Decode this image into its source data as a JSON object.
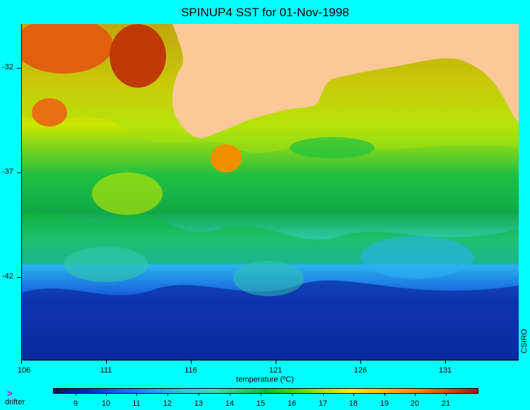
{
  "title": "SPINUP4 SST for 01-Nov-1998",
  "map": {
    "lat_labels": [
      "-32",
      "-37",
      "-42"
    ],
    "lon_labels": [
      "106",
      "111",
      "116",
      "121",
      "126",
      "131"
    ],
    "credit": "CSIRO",
    "land_color": "#fcc898",
    "sea_colors": {
      "warm": "#e06010",
      "orange": "#f09000",
      "yellow": "#f0e800",
      "lime": "#a8e010",
      "green": "#10b838",
      "teal": "#30c8a8",
      "cyan": "#2ab0f0",
      "blue": "#1450d8",
      "deep": "#0a2aa0"
    }
  },
  "colorbar": {
    "label": "temperature (ºC)",
    "ticks": [
      "9",
      "10",
      "11",
      "12",
      "13",
      "14",
      "15",
      "16",
      "17",
      "18",
      "19",
      "20",
      "21"
    ]
  },
  "legend": {
    "marker": ">",
    "label": "drifter"
  }
}
